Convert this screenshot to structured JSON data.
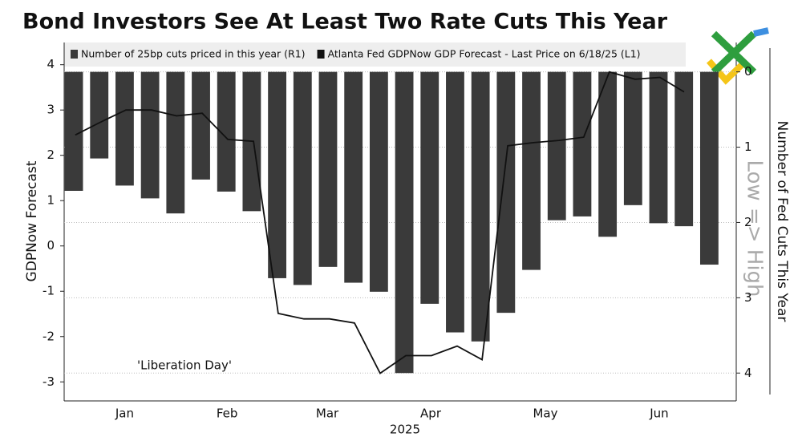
{
  "chart_data": {
    "type": "bar-line",
    "title": "Bond Investors See At Least Two Rate Cuts This Year",
    "xlabel": "2025",
    "ylabel": "GDPNow Forecast",
    "y2label": "Number of Fed Cuts This Year",
    "annotations": [
      "'Liberation Day'",
      "Low => High"
    ],
    "xlim": [
      -0.38,
      26.06
    ],
    "xticks": [
      {
        "value": 2,
        "label": "Jan"
      },
      {
        "value": 6.03,
        "label": "Feb"
      },
      {
        "value": 9.97,
        "label": "Mar"
      },
      {
        "value": 14.04,
        "label": "Apr"
      },
      {
        "value": 18.55,
        "label": "May"
      },
      {
        "value": 23.03,
        "label": "Jun"
      }
    ],
    "ylim": [
      -3.42,
      4.49
    ],
    "yticks": [
      -3,
      -2,
      -1,
      0,
      1,
      2,
      3,
      4
    ],
    "y2lim": [
      -0.39,
      4.37
    ],
    "y2_inverted": true,
    "y2ticks": [
      0,
      1,
      2,
      3,
      4
    ],
    "grid": "y2",
    "series": [
      {
        "name": "Number of 25bp cuts priced in this year (R1)",
        "type": "bar",
        "axis": "y2",
        "color": "#3a3a3a",
        "x": [
          0,
          1,
          2,
          3,
          4,
          5,
          6,
          7,
          8,
          9,
          10,
          11,
          12,
          13,
          14,
          15,
          16,
          17,
          18,
          19,
          20,
          21,
          22,
          23,
          24,
          25
        ],
        "values": [
          1.58,
          1.15,
          1.51,
          1.68,
          1.88,
          1.43,
          1.59,
          1.85,
          2.74,
          2.83,
          2.59,
          2.8,
          2.92,
          4.0,
          3.08,
          3.46,
          3.58,
          3.2,
          2.63,
          1.97,
          1.92,
          2.19,
          1.77,
          2.01,
          2.05,
          2.56
        ]
      },
      {
        "name": "Atlanta Fed GDPNow GDP Forecast - Last Price on 6/18/25 (L1)",
        "type": "line",
        "axis": "y",
        "color": "#111111",
        "x": [
          0.06,
          1.04,
          2.05,
          3.06,
          4.04,
          5.05,
          6.06,
          7.07,
          8.04,
          9.05,
          10.06,
          11.04,
          12.05,
          13.06,
          14.07,
          15.08,
          16.06,
          17.07,
          18.08,
          19.09,
          20.06,
          21.07,
          22.08,
          23.06,
          24.01
        ],
        "values": [
          2.45,
          2.73,
          3.0,
          3.0,
          2.87,
          2.93,
          2.35,
          2.31,
          -1.49,
          -1.61,
          -1.61,
          -1.7,
          -2.81,
          -2.42,
          -2.42,
          -2.21,
          -2.51,
          2.21,
          2.28,
          2.33,
          2.4,
          3.84,
          3.68,
          3.72,
          3.4
        ]
      }
    ]
  }
}
